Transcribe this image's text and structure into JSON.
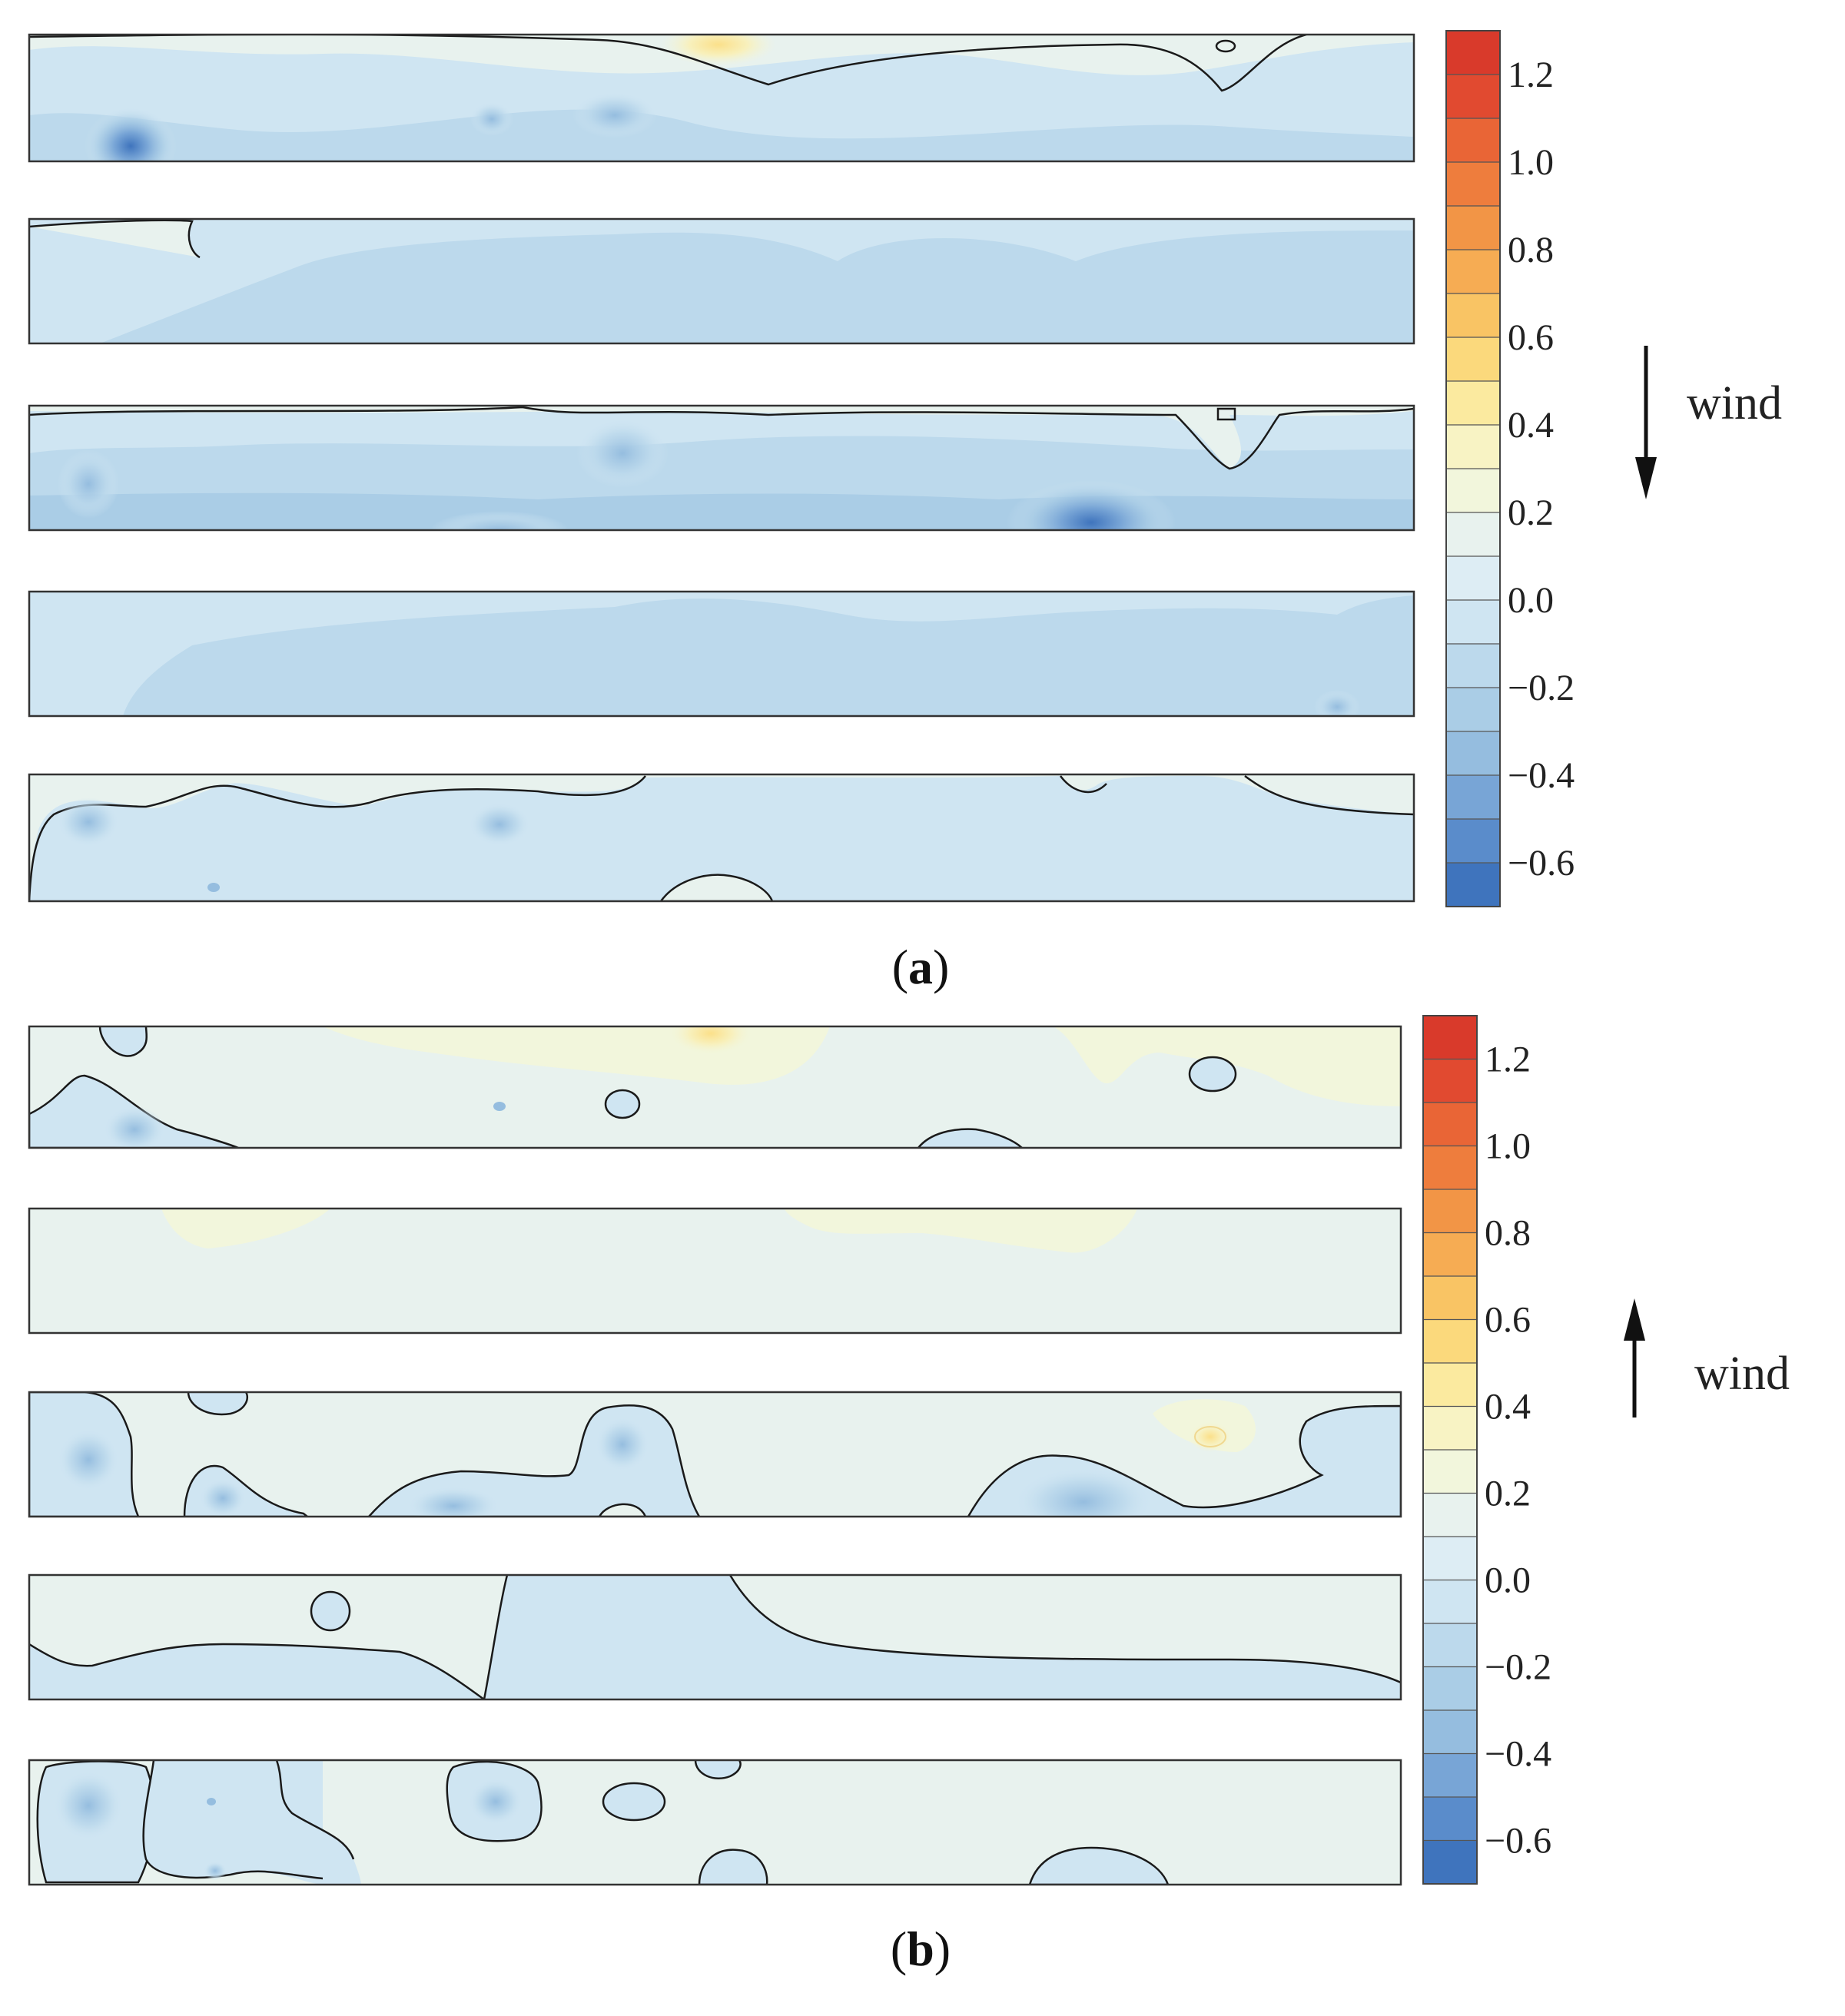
{
  "colors": {
    "levels": [
      "#3f74bd",
      "#5a8ccb",
      "#78a5d6",
      "#95bddf",
      "#aacde6",
      "#bcd9ec",
      "#cfe5f2",
      "#ddedf4",
      "#e8f2ee",
      "#f2f6dc",
      "#f8f3c4",
      "#fbea9f",
      "#fbd97c",
      "#f9c464",
      "#f6ac53",
      "#f29546",
      "#ee7d3d",
      "#e96536",
      "#e14a30",
      "#d93a2b"
    ],
    "contour": "#1a1a1a",
    "frame": "#333333"
  },
  "figure": {
    "a": {
      "caption_letter": "a",
      "wind_label": "wind",
      "wind_direction": "down",
      "colorbar_ticks": [
        "1.2",
        "1.0",
        "0.8",
        "0.6",
        "0.4",
        "0.2",
        "0.0",
        "−0.2",
        "−0.4",
        "−0.6"
      ],
      "colorbar_range": [
        -0.7,
        1.3
      ]
    },
    "b": {
      "caption_letter": "b",
      "wind_label": "wind",
      "wind_direction": "up",
      "colorbar_ticks": [
        "1.2",
        "1.0",
        "0.8",
        "0.6",
        "0.4",
        "0.2",
        "0.0",
        "−0.2",
        "−0.4",
        "−0.6"
      ],
      "colorbar_range": [
        -0.7,
        1.3
      ]
    }
  },
  "chart_data": [
    {
      "type": "heatmap",
      "panel": "a",
      "strips": 5,
      "colorbar": {
        "min": -0.7,
        "max": 1.3,
        "ticks": [
          1.2,
          1.0,
          0.8,
          0.6,
          0.4,
          0.2,
          0.0,
          -0.2,
          -0.4,
          -0.6
        ]
      },
      "strip_dominant_values": [
        -0.1,
        -0.15,
        -0.2,
        -0.15,
        -0.05
      ],
      "value_range_observed": [
        -0.6,
        0.5
      ]
    },
    {
      "type": "heatmap",
      "panel": "b",
      "strips": 5,
      "colorbar": {
        "min": -0.7,
        "max": 1.3,
        "ticks": [
          1.2,
          1.0,
          0.8,
          0.6,
          0.4,
          0.2,
          0.0,
          -0.2,
          -0.4,
          -0.6
        ]
      },
      "strip_dominant_values": [
        0.05,
        0.05,
        0.0,
        0.0,
        0.0
      ],
      "value_range_observed": [
        -0.3,
        0.4
      ]
    }
  ]
}
